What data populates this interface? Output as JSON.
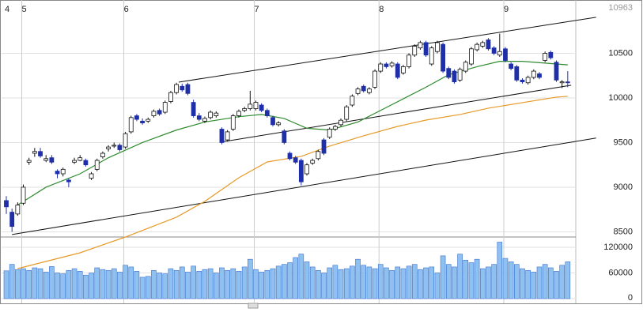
{
  "chart_data": {
    "type": "candlestick",
    "scale_top_label": "10963",
    "categories": [
      "4",
      null,
      null,
      "5",
      null,
      null,
      null,
      null,
      null,
      null,
      null,
      null,
      null,
      null,
      null,
      null,
      null,
      null,
      null,
      null,
      null,
      "6",
      null,
      null,
      null,
      null,
      null,
      null,
      null,
      null,
      null,
      null,
      null,
      null,
      null,
      null,
      null,
      null,
      null,
      null,
      null,
      null,
      null,
      null,
      "7",
      null,
      null,
      null,
      null,
      null,
      null,
      null,
      null,
      null,
      null,
      null,
      null,
      null,
      null,
      null,
      null,
      null,
      null,
      null,
      null,
      null,
      "8",
      null,
      null,
      null,
      null,
      null,
      null,
      null,
      null,
      null,
      null,
      null,
      null,
      null,
      null,
      null,
      null,
      null,
      null,
      null,
      null,
      null,
      "9",
      null,
      null,
      null,
      null,
      null,
      null,
      null,
      null,
      null,
      null,
      null
    ],
    "ohlc": [
      [
        8850,
        8900,
        8700,
        8780
      ],
      [
        8720,
        8760,
        8500,
        8560
      ],
      [
        8700,
        8830,
        8680,
        8800
      ],
      [
        8820,
        9030,
        8800,
        9000
      ],
      [
        9280,
        9330,
        9250,
        9300
      ],
      [
        9380,
        9440,
        9340,
        9400
      ],
      [
        9400,
        9440,
        9330,
        9350
      ],
      [
        9300,
        9360,
        9280,
        9320
      ],
      [
        9330,
        9360,
        9260,
        9280
      ],
      [
        9180,
        9200,
        9100,
        9150
      ],
      [
        9150,
        9220,
        9120,
        9200
      ],
      [
        9080,
        9100,
        9000,
        9060
      ],
      [
        9280,
        9330,
        9260,
        9300
      ],
      [
        9300,
        9360,
        9290,
        9330
      ],
      [
        9300,
        9320,
        9230,
        9250
      ],
      [
        9100,
        9170,
        9080,
        9150
      ],
      [
        9200,
        9320,
        9180,
        9300
      ],
      [
        9340,
        9400,
        9320,
        9380
      ],
      [
        9430,
        9470,
        9400,
        9450
      ],
      [
        9460,
        9500,
        9440,
        9470
      ],
      [
        9470,
        9490,
        9400,
        9420
      ],
      [
        9450,
        9620,
        9430,
        9600
      ],
      [
        9620,
        9800,
        9600,
        9780
      ],
      [
        9800,
        9820,
        9740,
        9760
      ],
      [
        9740,
        9770,
        9700,
        9720
      ],
      [
        9740,
        9780,
        9720,
        9760
      ],
      [
        9800,
        9870,
        9780,
        9850
      ],
      [
        9860,
        9880,
        9800,
        9820
      ],
      [
        9840,
        9970,
        9820,
        9950
      ],
      [
        9960,
        10080,
        9940,
        10060
      ],
      [
        10060,
        10170,
        10040,
        10150
      ],
      [
        10130,
        10160,
        10070,
        10090
      ],
      [
        10150,
        10170,
        10030,
        10050
      ],
      [
        9950,
        9980,
        9780,
        9800
      ],
      [
        9800,
        9830,
        9740,
        9760
      ],
      [
        9740,
        9790,
        9720,
        9770
      ],
      [
        9780,
        9860,
        9760,
        9840
      ],
      [
        9800,
        9850,
        9780,
        9830
      ],
      [
        9650,
        9670,
        9480,
        9500
      ],
      [
        9530,
        9640,
        9510,
        9620
      ],
      [
        9650,
        9820,
        9630,
        9800
      ],
      [
        9800,
        9870,
        9780,
        9850
      ],
      [
        9860,
        9900,
        9840,
        9880
      ],
      [
        9880,
        10080,
        9860,
        9930
      ],
      [
        9880,
        9970,
        9860,
        9950
      ],
      [
        9920,
        9940,
        9840,
        9860
      ],
      [
        9860,
        9880,
        9780,
        9800
      ],
      [
        9780,
        9800,
        9680,
        9700
      ],
      [
        9700,
        9740,
        9680,
        9720
      ],
      [
        9630,
        9650,
        9480,
        9500
      ],
      [
        9380,
        9400,
        9300,
        9320
      ],
      [
        9330,
        9350,
        9260,
        9280
      ],
      [
        9300,
        9320,
        9020,
        9060
      ],
      [
        9150,
        9270,
        9130,
        9250
      ],
      [
        9270,
        9320,
        9250,
        9300
      ],
      [
        9320,
        9420,
        9300,
        9400
      ],
      [
        9530,
        9550,
        9360,
        9380
      ],
      [
        9560,
        9670,
        9540,
        9650
      ],
      [
        9650,
        9700,
        9630,
        9680
      ],
      [
        9700,
        9770,
        9680,
        9750
      ],
      [
        9760,
        9920,
        9740,
        9900
      ],
      [
        9920,
        10040,
        9900,
        10020
      ],
      [
        10050,
        10120,
        10030,
        10100
      ],
      [
        10130,
        10150,
        10060,
        10080
      ],
      [
        10060,
        10120,
        10040,
        10100
      ],
      [
        10120,
        10320,
        10100,
        10300
      ],
      [
        10300,
        10400,
        10280,
        10380
      ],
      [
        10380,
        10400,
        10330,
        10350
      ],
      [
        10360,
        10410,
        10340,
        10390
      ],
      [
        10380,
        10400,
        10210,
        10230
      ],
      [
        10280,
        10370,
        10260,
        10350
      ],
      [
        10350,
        10500,
        10330,
        10480
      ],
      [
        10480,
        10600,
        10460,
        10580
      ],
      [
        10560,
        10640,
        10540,
        10620
      ],
      [
        10620,
        10640,
        10460,
        10480
      ],
      [
        10380,
        10580,
        10360,
        10560
      ],
      [
        10520,
        10640,
        10500,
        10620
      ],
      [
        10600,
        10620,
        10280,
        10300
      ],
      [
        10330,
        10350,
        10210,
        10230
      ],
      [
        10300,
        10320,
        10160,
        10180
      ],
      [
        10200,
        10340,
        10180,
        10320
      ],
      [
        10300,
        10420,
        10280,
        10400
      ],
      [
        10380,
        10570,
        10360,
        10550
      ],
      [
        10540,
        10620,
        10520,
        10600
      ],
      [
        10580,
        10640,
        10560,
        10620
      ],
      [
        10650,
        10670,
        10530,
        10550
      ],
      [
        10560,
        10580,
        10480,
        10500
      ],
      [
        10480,
        10720,
        10460,
        10520
      ],
      [
        10550,
        10570,
        10400,
        10420
      ],
      [
        10380,
        10400,
        10310,
        10330
      ],
      [
        10350,
        10370,
        10180,
        10200
      ],
      [
        10200,
        10220,
        10160,
        10180
      ],
      [
        10170,
        10250,
        10150,
        10230
      ],
      [
        10230,
        10320,
        10210,
        10300
      ],
      [
        10270,
        10290,
        10210,
        10230
      ],
      [
        10420,
        10520,
        10400,
        10500
      ],
      [
        10510,
        10530,
        10430,
        10450
      ],
      [
        10400,
        10420,
        10180,
        10200
      ],
      [
        10170,
        10200,
        10110,
        10180
      ],
      [
        10180,
        10300,
        10120,
        10170
      ]
    ],
    "up_color": "#ffffff",
    "down_color": "#1e2fa8",
    "volume": [
      65000,
      80000,
      68000,
      70000,
      66000,
      72000,
      70000,
      62000,
      75000,
      60000,
      58000,
      66000,
      70000,
      64000,
      55000,
      60000,
      72000,
      68000,
      66000,
      70000,
      62000,
      78000,
      74000,
      64000,
      50000,
      52000,
      66000,
      60000,
      58000,
      70000,
      66000,
      74000,
      62000,
      76000,
      64000,
      68000,
      70000,
      60000,
      72000,
      66000,
      70000,
      64000,
      74000,
      92000,
      68000,
      62000,
      66000,
      70000,
      76000,
      80000,
      84000,
      96000,
      104000,
      86000,
      74000,
      66000,
      60000,
      72000,
      78000,
      68000,
      70000,
      76000,
      92000,
      78000,
      74000,
      70000,
      80000,
      72000,
      66000,
      74000,
      70000,
      76000,
      80000,
      68000,
      72000,
      74000,
      60000,
      100000,
      80000,
      74000,
      104000,
      90000,
      84000,
      92000,
      70000,
      74000,
      80000,
      132000,
      94000,
      86000,
      80000,
      70000,
      66000,
      62000,
      74000,
      80000,
      72000,
      64000,
      78000,
      86000
    ],
    "volume_color": "#8ec0f0",
    "moving_averages": [
      {
        "color": "#2e8b2e",
        "x": [
          2,
          7,
          13,
          18,
          24,
          30,
          35,
          41,
          45,
          49,
          53,
          57,
          62,
          66,
          70,
          74,
          78,
          83,
          87,
          91,
          95,
          99
        ],
        "values": [
          8800,
          9000,
          9150,
          9330,
          9500,
          9640,
          9730,
          9790,
          9815,
          9770,
          9660,
          9640,
          9730,
          9860,
          9990,
          10120,
          10260,
          10350,
          10410,
          10410,
          10390,
          10370
        ]
      },
      {
        "color": "#e69a28",
        "x": [
          2,
          13,
          21,
          30,
          35,
          41,
          46,
          52,
          57,
          63,
          69,
          74,
          80,
          85,
          91,
          97,
          99
        ],
        "values": [
          8088,
          8265,
          8442,
          8664,
          8841,
          9106,
          9283,
          9345,
          9460,
          9575,
          9681,
          9752,
          9814,
          9885,
          9947,
          10009,
          10018
        ]
      }
    ],
    "trend_lines": [
      [
        [
          1,
          8470
        ],
        [
          104,
          9550
        ]
      ],
      [
        [
          30.4,
          10177
        ],
        [
          104,
          10903
        ]
      ],
      [
        [
          37.7,
          9504
        ],
        [
          99.6,
          10142
        ]
      ]
    ],
    "ylim": [
      8442,
      11097
    ],
    "yticks": [
      8500,
      9000,
      9500,
      10000,
      10500
    ],
    "vlim": [
      0,
      144000
    ],
    "vticks": [
      0,
      60000,
      120000
    ],
    "grid": true
  }
}
